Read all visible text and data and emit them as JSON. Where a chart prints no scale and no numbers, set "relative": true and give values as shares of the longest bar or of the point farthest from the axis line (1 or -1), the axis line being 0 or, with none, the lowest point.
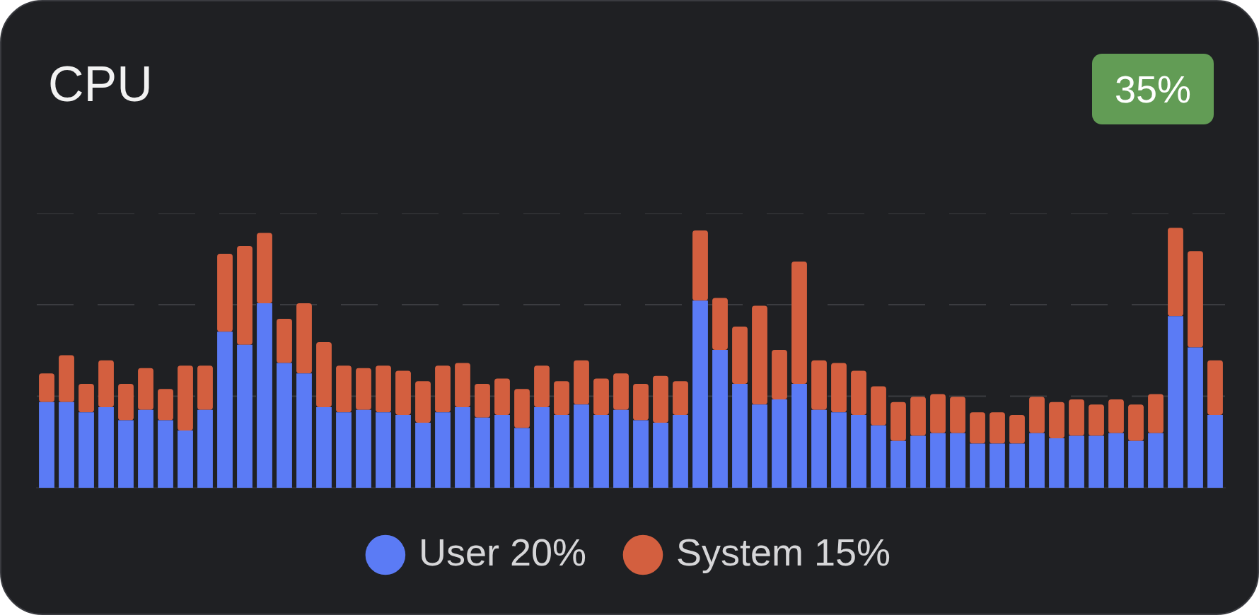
{
  "chart_data": {
    "type": "bar",
    "title": "CPU",
    "annotations": [
      "35%"
    ],
    "stacked": true,
    "relative": true,
    "legend": "bottom",
    "ref_lines": [
      {
        "axis": "y",
        "value": 0.352,
        "color": "#3b3c40",
        "line_style": "dashed"
      },
      {
        "axis": "y",
        "value": 0.704,
        "color": "#3b3c40",
        "line_style": "dashed"
      },
      {
        "axis": "y",
        "value": 1.055,
        "color": "#3b3c40",
        "line_style": "dashed"
      }
    ],
    "categories": [
      null,
      null,
      null,
      null,
      null,
      null,
      null,
      null,
      null,
      null,
      null,
      null,
      null,
      null,
      null,
      null,
      null,
      null,
      null,
      null,
      null,
      null,
      null,
      null,
      null,
      null,
      null,
      null,
      null,
      null,
      null,
      null,
      null,
      null,
      null,
      null,
      null,
      null,
      null,
      null,
      null,
      null,
      null,
      null,
      null,
      null,
      null,
      null,
      null,
      null,
      null,
      null,
      null,
      null,
      null,
      null,
      null,
      null,
      null,
      null
    ],
    "series": [
      {
        "name": "User 20%",
        "color": "#5b7bf5",
        "values": [
          0.33,
          0.33,
          0.29,
          0.31,
          0.26,
          0.3,
          0.26,
          0.22,
          0.3,
          0.6,
          0.55,
          0.71,
          0.48,
          0.44,
          0.31,
          0.29,
          0.3,
          0.29,
          0.28,
          0.25,
          0.29,
          0.31,
          0.27,
          0.28,
          0.23,
          0.31,
          0.28,
          0.32,
          0.28,
          0.3,
          0.26,
          0.25,
          0.28,
          0.72,
          0.53,
          0.4,
          0.32,
          0.34,
          0.4,
          0.3,
          0.29,
          0.28,
          0.24,
          0.18,
          0.2,
          0.21,
          0.21,
          0.17,
          0.17,
          0.17,
          0.21,
          0.19,
          0.2,
          0.2,
          0.21,
          0.18,
          0.21,
          0.66,
          0.54,
          0.28
        ]
      },
      {
        "name": "System 15%",
        "color": "#d35f3f",
        "values": [
          0.11,
          0.18,
          0.11,
          0.18,
          0.14,
          0.16,
          0.12,
          0.25,
          0.17,
          0.3,
          0.38,
          0.27,
          0.17,
          0.27,
          0.25,
          0.18,
          0.16,
          0.18,
          0.17,
          0.16,
          0.18,
          0.17,
          0.13,
          0.14,
          0.15,
          0.16,
          0.13,
          0.17,
          0.14,
          0.14,
          0.14,
          0.18,
          0.13,
          0.27,
          0.2,
          0.22,
          0.38,
          0.19,
          0.47,
          0.19,
          0.19,
          0.17,
          0.15,
          0.15,
          0.15,
          0.15,
          0.14,
          0.12,
          0.12,
          0.11,
          0.14,
          0.14,
          0.14,
          0.12,
          0.13,
          0.14,
          0.15,
          0.34,
          0.37,
          0.21
        ]
      }
    ]
  }
}
